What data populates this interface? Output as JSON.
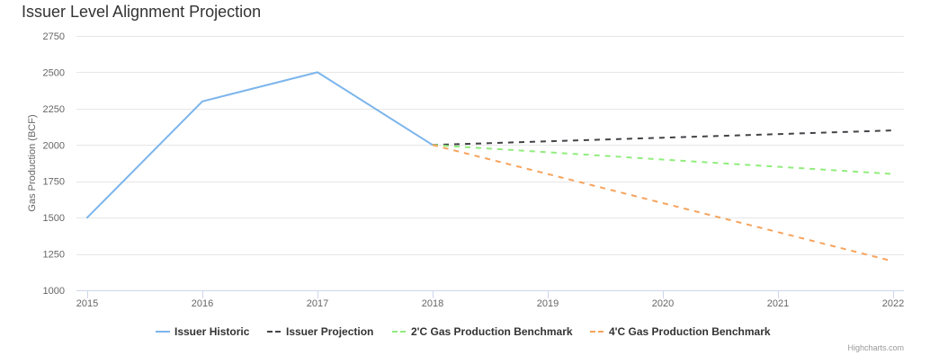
{
  "chart_data": {
    "type": "line",
    "title": "Issuer Level Alignment Projection",
    "xlabel": "",
    "ylabel": "Gas Production (BCF)",
    "ylim": [
      1000,
      2750
    ],
    "yticks": [
      1000,
      1250,
      1500,
      1750,
      2000,
      2250,
      2500,
      2750
    ],
    "xticks": [
      2015,
      2016,
      2017,
      2018,
      2019,
      2020,
      2021,
      2022
    ],
    "grid": true,
    "legend_position": "bottom-center",
    "series": [
      {
        "name": "Issuer Historic",
        "color": "#7cb5ec",
        "dash": "solid",
        "points": [
          [
            2015,
            1500
          ],
          [
            2016,
            2300
          ],
          [
            2017,
            2500
          ],
          [
            2018,
            2000
          ]
        ]
      },
      {
        "name": "Issuer Projection",
        "color": "#434348",
        "dash": "dash",
        "points": [
          [
            2018,
            2000
          ],
          [
            2019,
            2025
          ],
          [
            2020,
            2050
          ],
          [
            2021,
            2075
          ],
          [
            2022,
            2100
          ]
        ]
      },
      {
        "name": "2'C Gas Production Benchmark",
        "color": "#90ed7d",
        "dash": "dash",
        "points": [
          [
            2018,
            2000
          ],
          [
            2019,
            1950
          ],
          [
            2020,
            1900
          ],
          [
            2021,
            1850
          ],
          [
            2022,
            1800
          ]
        ]
      },
      {
        "name": "4'C Gas Production Benchmark",
        "color": "#f7a35c",
        "dash": "dash",
        "points": [
          [
            2018,
            2000
          ],
          [
            2019,
            1800
          ],
          [
            2020,
            1600
          ],
          [
            2021,
            1400
          ],
          [
            2022,
            1200
          ]
        ]
      }
    ]
  },
  "credits": "Highcharts.com"
}
